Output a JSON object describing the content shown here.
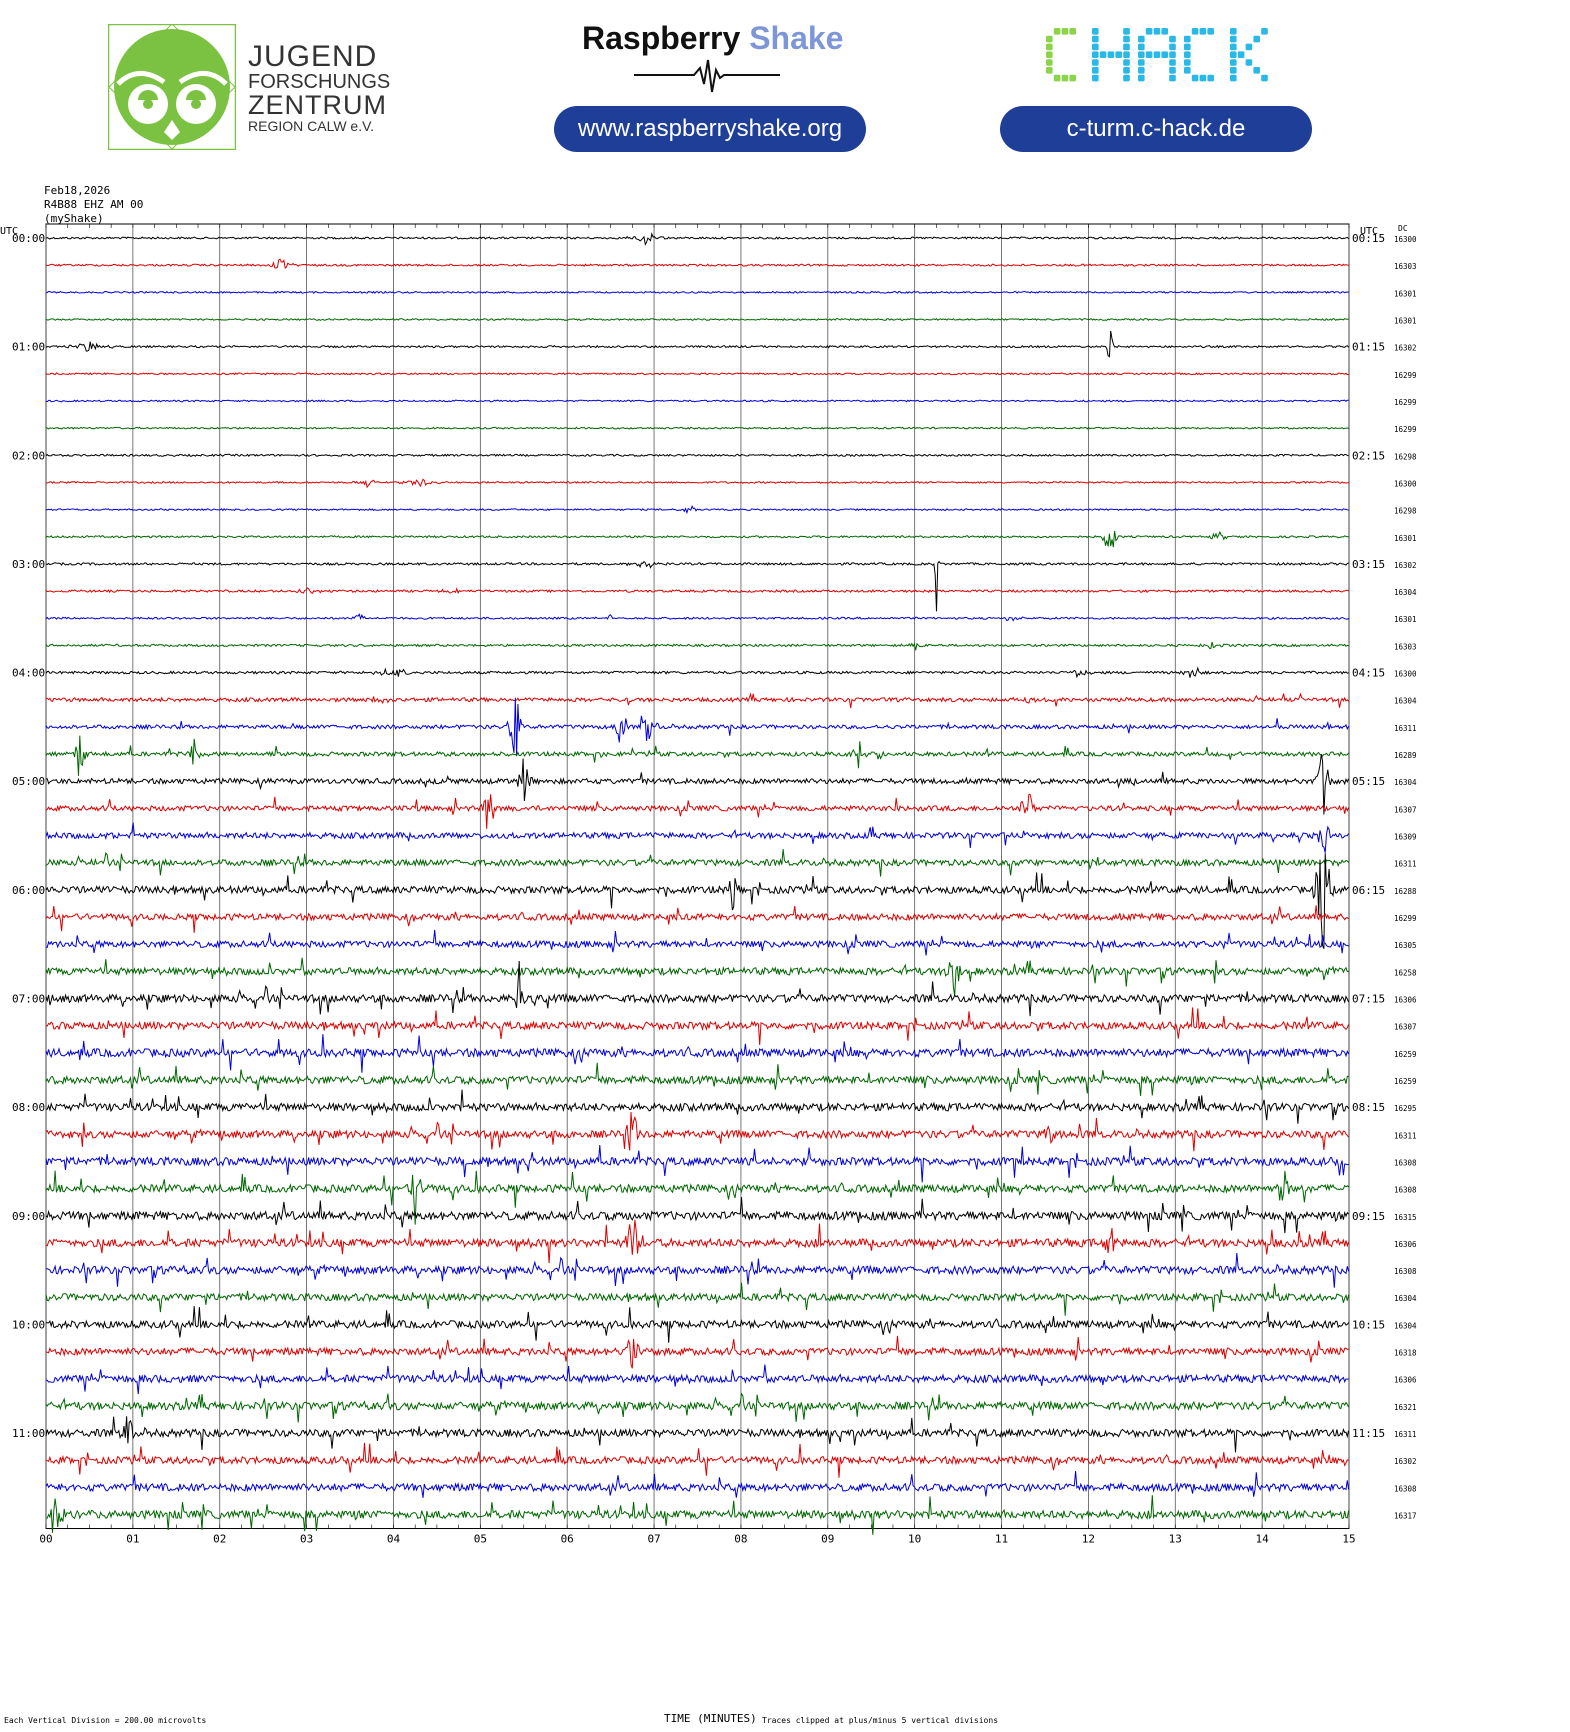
{
  "header": {
    "org_lines": [
      "JUGEND",
      "FORSCHUNGS",
      "ZENTRUM",
      "REGION CALW e.V."
    ],
    "rs_brand": "Raspberry",
    "rs_brand_accent": "Shake",
    "rs_url": "www.raspberryshake.org",
    "chack_logo": "CHACK",
    "chack_url": "c-turm.c-hack.de"
  },
  "plot_info": {
    "date": "Feb18,2026",
    "station": "R4B88 EHZ AM 00",
    "source": "(myShake)"
  },
  "footer": {
    "scale_note": "Each Vertical Division =  200.00 microvolts",
    "xlabel": "TIME (MINUTES)",
    "clip_note": "Traces clipped at plus/minus 5 vertical divisions"
  },
  "colors": {
    "trace_cycle": [
      "#000000",
      "#dd0000",
      "#0000dd",
      "#006600"
    ],
    "rs_accent": "#7d96d8",
    "pill": "#1f3e98",
    "jfz_green": "#7cc242",
    "chack_green": "#8bd44a",
    "chack_blue": "#2ab8e6"
  },
  "chart_data": {
    "type": "line",
    "title": "",
    "xlabel": "TIME (MINUTES)",
    "ylabel": "",
    "left_axis_header": "UTC",
    "right_axis_header": "UTC",
    "dc_header": "DC",
    "x_ticks": [
      "00",
      "01",
      "02",
      "03",
      "04",
      "05",
      "06",
      "07",
      "08",
      "09",
      "10",
      "11",
      "12",
      "13",
      "14",
      "15"
    ],
    "xlim": [
      0,
      15
    ],
    "row_minutes": 15,
    "left_labels": [
      "00:00",
      "01:00",
      "02:00",
      "03:00",
      "04:00",
      "05:00",
      "06:00",
      "07:00",
      "08:00",
      "09:00",
      "10:00",
      "11:00"
    ],
    "right_labels": [
      "00:15",
      "01:15",
      "02:15",
      "03:15",
      "04:15",
      "05:15",
      "06:15",
      "07:15",
      "08:15",
      "09:15",
      "10:15",
      "11:15"
    ],
    "dc_offsets": [
      16300,
      16303,
      16301,
      16301,
      16302,
      16299,
      16299,
      16299,
      16298,
      16300,
      16298,
      16301,
      16302,
      16304,
      16301,
      16303,
      16300,
      16304,
      16311,
      16289,
      16304,
      16307,
      16309,
      16311,
      16288,
      16299,
      16305,
      16258,
      16306,
      16307,
      16259,
      16259,
      16295,
      16311,
      16308,
      16308,
      16315,
      16306,
      16308,
      16304,
      16304,
      16318,
      16306,
      16321,
      16311,
      16302,
      16308,
      16317
    ],
    "noise_level": [
      0.6,
      0.6,
      0.5,
      0.5,
      0.6,
      0.5,
      0.5,
      0.5,
      0.6,
      0.5,
      0.5,
      0.6,
      0.7,
      0.7,
      0.6,
      0.7,
      0.8,
      1.2,
      1.2,
      1.3,
      1.6,
      1.6,
      1.8,
      1.9,
      2.2,
      2.0,
      2.0,
      2.2,
      2.4,
      2.3,
      2.5,
      2.4,
      2.4,
      2.3,
      2.5,
      2.4,
      2.6,
      2.5,
      2.4,
      2.2,
      2.3,
      2.2,
      2.3,
      2.4,
      2.3,
      2.2,
      2.3,
      2.5
    ],
    "events": [
      {
        "trace": 0,
        "minute": 6.9,
        "amplitude": 8,
        "width": 0.25
      },
      {
        "trace": 1,
        "minute": 2.7,
        "amplitude": 6,
        "width": 0.3
      },
      {
        "trace": 4,
        "minute": 0.5,
        "amplitude": 6,
        "width": 0.35
      },
      {
        "trace": 4,
        "minute": 12.25,
        "amplitude": 48,
        "width": 0.05
      },
      {
        "trace": 9,
        "minute": 3.7,
        "amplitude": 5,
        "width": 0.2
      },
      {
        "trace": 9,
        "minute": 4.3,
        "amplitude": 6,
        "width": 0.25
      },
      {
        "trace": 10,
        "minute": 7.4,
        "amplitude": 6,
        "width": 0.15
      },
      {
        "trace": 11,
        "minute": 12.25,
        "amplitude": 40,
        "width": 0.1
      },
      {
        "trace": 11,
        "minute": 13.5,
        "amplitude": 5,
        "width": 0.2
      },
      {
        "trace": 12,
        "minute": 6.9,
        "amplitude": 6,
        "width": 0.3
      },
      {
        "trace": 12,
        "minute": 10.25,
        "amplitude": 52,
        "width": 0.05
      },
      {
        "trace": 13,
        "minute": 3.0,
        "amplitude": 5,
        "width": 0.3
      },
      {
        "trace": 13,
        "minute": 4.7,
        "amplitude": 4,
        "width": 0.25
      },
      {
        "trace": 14,
        "minute": 3.6,
        "amplitude": 5,
        "width": 0.15
      },
      {
        "trace": 14,
        "minute": 6.5,
        "amplitude": 4,
        "width": 0.2
      },
      {
        "trace": 14,
        "minute": 11.1,
        "amplitude": 5,
        "width": 0.15
      },
      {
        "trace": 15,
        "minute": 10.0,
        "amplitude": 5,
        "width": 0.2
      },
      {
        "trace": 15,
        "minute": 13.4,
        "amplitude": 5,
        "width": 0.2
      },
      {
        "trace": 16,
        "minute": 4.0,
        "amplitude": 6,
        "width": 0.35
      },
      {
        "trace": 16,
        "minute": 11.9,
        "amplitude": 6,
        "width": 0.2
      },
      {
        "trace": 16,
        "minute": 13.2,
        "amplitude": 9,
        "width": 0.2
      },
      {
        "trace": 17,
        "minute": 3.8,
        "amplitude": 6,
        "width": 0.2
      },
      {
        "trace": 17,
        "minute": 11.3,
        "amplitude": 6,
        "width": 0.2
      },
      {
        "trace": 18,
        "minute": 5.4,
        "amplitude": 60,
        "width": 0.1
      },
      {
        "trace": 18,
        "minute": 6.6,
        "amplitude": 30,
        "width": 0.1
      },
      {
        "trace": 18,
        "minute": 6.95,
        "amplitude": 45,
        "width": 0.1
      },
      {
        "trace": 19,
        "minute": 0.4,
        "amplitude": 36,
        "width": 0.1
      },
      {
        "trace": 19,
        "minute": 1.7,
        "amplitude": 20,
        "width": 0.1
      },
      {
        "trace": 19,
        "minute": 9.35,
        "amplitude": 20,
        "width": 0.1
      },
      {
        "trace": 20,
        "minute": 5.5,
        "amplitude": 40,
        "width": 0.1
      },
      {
        "trace": 20,
        "minute": 14.7,
        "amplitude": 60,
        "width": 0.1
      },
      {
        "trace": 21,
        "minute": 5.1,
        "amplitude": 40,
        "width": 0.1
      },
      {
        "trace": 21,
        "minute": 11.3,
        "amplitude": 35,
        "width": 0.1
      },
      {
        "trace": 22,
        "minute": 14.7,
        "amplitude": 50,
        "width": 0.1
      },
      {
        "trace": 24,
        "minute": 14.7,
        "amplitude": 70,
        "width": 0.15
      },
      {
        "trace": 24,
        "minute": 7.9,
        "amplitude": 25,
        "width": 0.1
      },
      {
        "trace": 27,
        "minute": 10.45,
        "amplitude": 35,
        "width": 0.15
      },
      {
        "trace": 28,
        "minute": 5.45,
        "amplitude": 40,
        "width": 0.1
      },
      {
        "trace": 33,
        "minute": 6.75,
        "amplitude": 40,
        "width": 0.1
      },
      {
        "trace": 33,
        "minute": 11.55,
        "amplitude": 25,
        "width": 0.1
      },
      {
        "trace": 35,
        "minute": 4.25,
        "amplitude": 35,
        "width": 0.1
      },
      {
        "trace": 35,
        "minute": 14.25,
        "amplitude": 40,
        "width": 0.1
      },
      {
        "trace": 37,
        "minute": 6.75,
        "amplitude": 60,
        "width": 0.12
      },
      {
        "trace": 37,
        "minute": 12.25,
        "amplitude": 25,
        "width": 0.1
      },
      {
        "trace": 41,
        "minute": 6.75,
        "amplitude": 50,
        "width": 0.1
      },
      {
        "trace": 44,
        "minute": 0.95,
        "amplitude": 40,
        "width": 0.1
      },
      {
        "trace": 47,
        "minute": 0.1,
        "amplitude": 35,
        "width": 0.15
      }
    ]
  }
}
